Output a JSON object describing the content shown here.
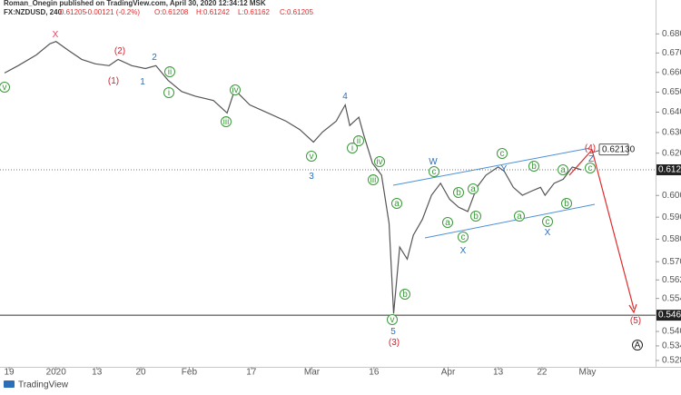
{
  "chart_data": {
    "type": "line",
    "publisher": "Roman_Onegin published on TradingView.com, April 30, 2020 12:34:12 MSK",
    "symbol": "FX:NZDUSD, 240",
    "last": "0.61205",
    "change": "-0.00121 (-0.2%)",
    "ohlc": [
      "O:0.61208",
      "H:0.61242",
      "L:0.61162",
      "C:0.61205"
    ],
    "logo": "TradingView",
    "log_scale": true,
    "color": "#555555",
    "x": [
      3,
      12,
      24,
      33,
      37,
      45,
      54,
      63,
      72,
      78,
      87,
      96,
      103,
      111,
      120,
      129,
      141,
      150,
      155,
      165,
      177,
      189,
      198,
      207,
      213,
      222,
      228,
      231,
      237,
      240,
      246,
      252,
      257,
      260,
      264,
      269,
      273,
      279,
      285,
      291,
      297,
      303,
      309,
      315,
      321,
      329,
      333,
      339,
      345,
      351,
      357,
      360,
      366,
      372,
      378,
      384
    ],
    "values": [
      0.6597,
      0.6635,
      0.669,
      0.6748,
      0.676,
      0.6715,
      0.6667,
      0.6644,
      0.6635,
      0.6667,
      0.6635,
      0.662,
      0.6635,
      0.656,
      0.6503,
      0.648,
      0.6458,
      0.6396,
      0.6512,
      0.6436,
      0.6396,
      0.6355,
      0.6314,
      0.6253,
      0.6302,
      0.6355,
      0.6436,
      0.6334,
      0.6375,
      0.6294,
      0.6152,
      0.6095,
      0.5872,
      0.5475,
      0.5765,
      0.5711,
      0.5818,
      0.589,
      0.6001,
      0.6057,
      0.5982,
      0.5945,
      0.5926,
      0.6038,
      0.6095,
      0.6134,
      0.6114,
      0.6038,
      0.6001,
      0.602,
      0.6038,
      0.6001,
      0.6057,
      0.6076,
      0.6134,
      0.61205
    ],
    "xlim": [
      0,
      433
    ],
    "xticks": [
      {
        "value": 6,
        "label": "19"
      },
      {
        "value": 37,
        "label": "2020"
      },
      {
        "value": 64,
        "label": "13"
      },
      {
        "value": 93,
        "label": "20"
      },
      {
        "value": 125,
        "label": "Feb"
      },
      {
        "value": 166,
        "label": "17"
      },
      {
        "value": 206,
        "label": "Mar"
      },
      {
        "value": 247,
        "label": "16"
      },
      {
        "value": 296,
        "label": "Apr"
      },
      {
        "value": 329,
        "label": "13"
      },
      {
        "value": 358,
        "label": "22"
      },
      {
        "value": 388,
        "label": "May"
      }
    ],
    "ylim": [
      0.5254,
      0.6932
    ],
    "yticks": [
      {
        "value": 0.68,
        "label": "0.68000"
      },
      {
        "value": 0.67,
        "label": "0.67000"
      },
      {
        "value": 0.66,
        "label": "0.66000"
      },
      {
        "value": 0.65,
        "label": "0.65000"
      },
      {
        "value": 0.64,
        "label": "0.64000"
      },
      {
        "value": 0.63,
        "label": "0.63000"
      },
      {
        "value": 0.62,
        "label": "0.62000"
      },
      {
        "value": 0.6,
        "label": "0.60000"
      },
      {
        "value": 0.59,
        "label": "0.59000"
      },
      {
        "value": 0.58,
        "label": "0.58000"
      },
      {
        "value": 0.57,
        "label": "0.57000"
      },
      {
        "value": 0.562,
        "label": "0.56200"
      },
      {
        "value": 0.554,
        "label": "0.55400"
      },
      {
        "value": 0.54,
        "label": "0.54000"
      },
      {
        "value": 0.534,
        "label": "0.53400"
      },
      {
        "value": 0.528,
        "label": "0.52800"
      }
    ],
    "last_price": {
      "value": 0.61205,
      "label": "0.61205"
    },
    "level": {
      "value": 0.54686,
      "label": "0.54686"
    },
    "target": {
      "value": 0.6213,
      "label": "0.62130"
    },
    "annotations": [
      {
        "text": "X",
        "color": "#e8415d"
      },
      {
        "text": "(2)",
        "color": "#d0202c"
      },
      {
        "text": "(1)",
        "color": "#d0202c"
      },
      {
        "text": "(3)",
        "color": "#d0202c"
      },
      {
        "text": "(4)",
        "color": "#d0202c"
      },
      {
        "text": "(5)",
        "color": "#d0202c"
      },
      {
        "text": "2",
        "color": "#2a6fb8"
      },
      {
        "text": "1",
        "color": "#2a6fb8"
      },
      {
        "text": "4",
        "color": "#2a6fb8"
      },
      {
        "text": "3",
        "color": "#2a6fb8"
      },
      {
        "text": "5",
        "color": "#2a6fb8"
      },
      {
        "text": "W",
        "color": "#2a6fb8"
      },
      {
        "text": "Y",
        "color": "#2a6fb8"
      },
      {
        "text": "X",
        "color": "#2a6fb8"
      },
      {
        "text": "X",
        "color": "#2a6fb8"
      },
      {
        "text": "Z",
        "color": "#2a6fb8"
      },
      {
        "text": "v",
        "color": "#3a9a3a",
        "circled": true
      },
      {
        "text": "ii",
        "color": "#3a9a3a",
        "circled": true
      },
      {
        "text": "i",
        "color": "#3a9a3a",
        "circled": true
      },
      {
        "text": "iv",
        "color": "#3a9a3a",
        "circled": true
      },
      {
        "text": "iii",
        "color": "#3a9a3a",
        "circled": true
      },
      {
        "text": "v",
        "color": "#3a9a3a",
        "circled": true
      },
      {
        "text": "ii",
        "color": "#3a9a3a",
        "circled": true
      },
      {
        "text": "i",
        "color": "#3a9a3a",
        "circled": true
      },
      {
        "text": "iv",
        "color": "#3a9a3a",
        "circled": true
      },
      {
        "text": "iii",
        "color": "#3a9a3a",
        "circled": true
      },
      {
        "text": "a",
        "color": "#3a9a3a",
        "circled": true
      },
      {
        "text": "b",
        "color": "#3a9a3a",
        "circled": true
      },
      {
        "text": "v",
        "color": "#3a9a3a",
        "circled": true
      },
      {
        "text": "c",
        "color": "#3a9a3a",
        "circled": true
      },
      {
        "text": "a",
        "color": "#3a9a3a",
        "circled": true
      },
      {
        "text": "b",
        "color": "#3a9a3a",
        "circled": true
      },
      {
        "text": "c",
        "color": "#3a9a3a",
        "circled": true
      },
      {
        "text": "a",
        "color": "#3a9a3a",
        "circled": true
      },
      {
        "text": "b",
        "color": "#3a9a3a",
        "circled": true
      },
      {
        "text": "c",
        "color": "#3a9a3a",
        "circled": true
      },
      {
        "text": "a",
        "color": "#3a9a3a",
        "circled": true
      },
      {
        "text": "b",
        "color": "#3a9a3a",
        "circled": true
      },
      {
        "text": "c",
        "color": "#3a9a3a",
        "circled": true
      },
      {
        "text": "b",
        "color": "#3a9a3a",
        "circled": true
      },
      {
        "text": "a",
        "color": "#3a9a3a",
        "circled": true
      },
      {
        "text": "c",
        "color": "#3a9a3a",
        "circled": true
      },
      {
        "text": "A",
        "color": "#222222",
        "circled": true
      }
    ]
  }
}
